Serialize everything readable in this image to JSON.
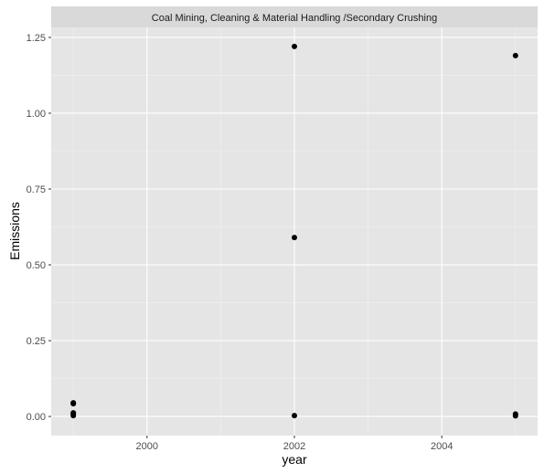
{
  "chart_data": {
    "type": "scatter",
    "facet_title": "Coal Mining, Cleaning & Material Handling /Secondary Crushing",
    "xlabel": "year",
    "ylabel": "Emissions",
    "xlim": [
      1998.7,
      2005.3
    ],
    "ylim": [
      -0.063,
      1.283
    ],
    "x_ticks": [
      2000,
      2002,
      2004
    ],
    "y_ticks": [
      0.0,
      0.25,
      0.5,
      0.75,
      1.0,
      1.25
    ],
    "x_tick_labels": [
      "2000",
      "2002",
      "2004"
    ],
    "y_tick_labels": [
      "0.00",
      "0.25",
      "0.50",
      "0.75",
      "1.00",
      "1.25"
    ],
    "grid": true,
    "points": [
      {
        "x": 1999,
        "y": 0.045
      },
      {
        "x": 1999,
        "y": 0.042
      },
      {
        "x": 1999,
        "y": 0.012
      },
      {
        "x": 1999,
        "y": 0.008
      },
      {
        "x": 1999,
        "y": 0.003
      },
      {
        "x": 2002,
        "y": 1.22
      },
      {
        "x": 2002,
        "y": 0.59
      },
      {
        "x": 2002,
        "y": 0.003
      },
      {
        "x": 2005,
        "y": 1.19
      },
      {
        "x": 2005,
        "y": 0.008
      },
      {
        "x": 2005,
        "y": 0.002
      }
    ],
    "colors": {
      "panel": "#e5e5e5",
      "strip": "#d9d9d9",
      "grid_major": "#ffffff",
      "grid_minor": "#f0f0f0",
      "point": "#000000",
      "tick": "#333333"
    }
  }
}
